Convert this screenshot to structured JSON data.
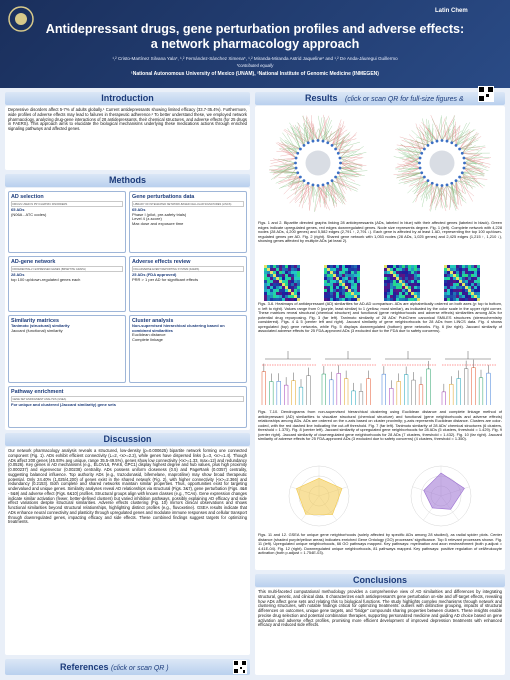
{
  "header": {
    "title_line1": "Antidepressant drugs, gene perturbation profiles and adverse effects:",
    "title_line2": "a network pharmacology approach",
    "authors": "¹,² Cristo-Martínez Silvana Yala*, ¹,² Fernández-Sánchez Ximena*, ¹,² Miranda-Miranda Astrid Jaqueline* and ¹,² De Anda-Jáuregui Guillermo",
    "equal": "*contributed equally",
    "affiliation": "¹National Autonomous University of Mexico (UNAM), ²National Institute of Genomic Medicine (INMEGEN)",
    "logo": "Latin Chem"
  },
  "introduction": {
    "heading": "Introduction",
    "text": "Depressive disorders affect 5-7% of adults globally.¹ Current antidepressants showing limited efficacy (33.7-35.4%). Furthermore, wide profiles of adverse effects may lead to failures in therapeutic adherence.² To better understand these, we employed network pharmacology, analyzing drug-gene interactions of 28 antidepressants, their chemical structures, and adverse effects (for 25 drugs in FAERS). This approach aims to elucidate the biological mechanisms underlying these medications actions through enriched signaling pathways and affected genes."
  },
  "methods": {
    "heading": "Methods",
    "boxes": [
      {
        "title": "AD selection",
        "subtitle": "DRUGS USED IN PSYCHIATRIC DISORDERS",
        "lines": [
          "65 ADs",
          "(N06A - ATC codes)"
        ]
      },
      {
        "title": "Gene perturbations data",
        "subtitle": "LIBRARY OF INTEGRATED NETWORK-BASED CELLULAR SIGNATURES (LINCS)",
        "lines": [
          "65 ADs",
          "Phase I (pilot, pre-safety trials)",
          "Level 4 (z-score)",
          "Max dose and exposure time"
        ]
      },
      {
        "title": "AD-gene network",
        "subtitle": "DIFFERENTIALLY EXPRESSED GENES (BIPARTITE GRAPH)",
        "lines": [
          "28 ADs",
          "top 100 up/down-regulated genes each"
        ]
      },
      {
        "title": "Adverse effects review",
        "subtitle": "FDA ADVERSE EVENT REPORTING SYSTEM (FAERS)",
        "lines": [
          "25 ADs (FDA approved)",
          "PRR > 1 per AD for significant effects"
        ]
      },
      {
        "title": "Similarity matrices",
        "subtitle": "",
        "lines": [
          "Tanimoto (structural) similarity",
          "Jaccard (functional) similarity"
        ]
      },
      {
        "title": "Cluster analysis",
        "subtitle": "",
        "lines": [
          "Non-supervised hierarchical clustering based on combined similarities",
          "Euclidean distance",
          "Complete linkage"
        ]
      },
      {
        "title": "Pathway enrichment",
        "subtitle": "GENE SET ENRICHMENT ANALYSIS (GSEA)",
        "lines": [
          "For unique and clustered (Jaccard similarity) gene sets"
        ]
      }
    ]
  },
  "discussion": {
    "heading": "Discussion",
    "text": "Our network pharmacology analysis reveals a structured, low-density (p=0.000625) bipartite network forming one connected component (Fig. 1). ADs exhibit efficient connectivity (L=2, <κ>=2.2), while genes have dispersed links (L=3, <κ>=1.4). Though ADs affect 200 genes (45.93% avg unique, range 35.5-49.5%), genes show low connectivity (<κ>=1.33, max=12) and redundancy (0.0526). Key genes in AD mechanisms (e.g., ELOVL6, PAK6, GPC1) display highest degree and hub values, plus high proximity (0.000237) and eigenvector (0.00238) centrality. ADs possess uniform closeness (0.5) and PageRank (0.0357) centrality, suggesting balanced influence. Top authority ADs (e.g., trazodonasid, bifemelane, maprotiline) may show broad therapeutic potential. Only 24.40% (1,025/4,200) of genes exist in the shared network (Fig. 2), with higher connectivity (<κ>=2.366) and redundancy (0.2153). Both complete and shared networks maintain similar properties. Thus, opportunities exist for targeting undervalued and unique genes. Similarity analyses reveal AD relationships via structural (Figs. 3&7), gene perturbation (Figs. 4&8 - 5&9) and adverse effect (Figs. 6&10) profiles. Structural groups align with known classes (e.g., TCAs). Gene expression changes indicate similar activation (fewer, better-defined clusters) but varied inhibition pathways, possibly explaining AD efficacy and side effect variations despite structural similarities. Adverse effects clustering (Fig. 10) mirrors clinical observations and shows functional similarities beyond structural relationships, highlighting distinct profiles (e.g., fluvoxetine). GSEA results indicate that ADs enhance neural connectivity and plasticity through upregulated genes and modulate immune responses and cellular transport through downregulated genes, impacting efficacy and side effects. These combined findings suggest targets for optimizing treatments."
  },
  "references": {
    "heading": "References",
    "note": "(click or scan QR )"
  },
  "results": {
    "heading": "Results",
    "note": "(click or scan QR for full-size figures & supplements)",
    "captions": [
      "Figs. 1 and 2. Bipartite directed graphs linking 28 antidepressants (ADs, labeled in blue) with their affected genes (labeled in black). Green edges indicate upregulated genes, red edges downregulated genes. Node size represents degree. Fig. 1 (left). Complete network with 4,228 nodes (28 ADs, 4,200 genes) and 5,582 edges (2,791 ↑, 2,791 ↓). Each gene is affected by at least 1 AD, representing the top 100 up/down-regulated genes per AD. Fig. 2 (right). Shared gene network with 1,053 nodes (28 ADs, 1,025 genes) and 2,425 edges (1,215 ↑, 1,210 ↓), showing genes affected by multiple ADs (at least 2).",
      "Figs. 3-6. Heatmaps of antidepressant (AD) similarities for AD-AD comparison. ADs are alphabetically ordered on both axes (y: top to bottom, x: left to right). Values range from 0 (purple, least similar) to 1 (yellow, most similar), as indicated by the color scale in the upper right corner. These matrices reveal structural (chemical structure) and functional (gene neighborhoods and adverse effects) similarities among ADs for potential drug repurposing. Fig. 3 (far left). Tanimoto similarity of 28 ADs' PubChem canonical SMILES structures (stereochemistry considered). Figs. 4 & 5 (center left and right). Jaccard similarity of gene neighborhoods for 28 ADs from LINCS data. Fig. 4 shows upregulated (top) gene networks, while Fig. 5 displays downregulated (bottom) gene networks. Fig. 6 (far right). Jaccard similarity of associated adverse effects for 25 FDA-approved ADs (3 excluded due to the FDA due to safety concerns).",
      "Figs. 7-10. Dendrograms from non-supervised hierarchical clustering using Euclidean distance and complete linkage method of antidepressant (AD) similarities to visualize structural (chemical structure) and functional (gene neighborhoods and adverse effects) relationships among ADs. ADs are ordered on the x-axis based on cluster proximity; y-axis represents Euclidean distance. Clusters are color-coded, with the red dashed line indicating the cut-off threshold. Fig. 7 (far left). Tanimoto similarity of 28 ADs' chemical structures (6 clusters, threshold = 1.375). Fig. 8 (center left). Jaccard similarity of upregulated gene neighborhoods for 28 ADs (5 clusters, threshold = 1.429). Fig. 9 (center right). Jaccard similarity of downregulated gene neighborhoods for 28 ADs (7 clusters, threshold = 1.432). Fig. 10 (far right). Jaccard similarity of adverse effects for 25 FDA-approved ADs (3 excluded due to safety concerns) (4 clusters, threshold = 1.350).",
      "Figs. 11 and 12. GSEA for unique gene neighborhoods (solely affected by specific ADs among 28 studied), as radial spider plots. Center distance (shaded purple/yellow areas) indicates enriched Gene Ontology (GO) processes' significance. Top 5 relevant processes shown. Fig. 11 (left). Upregulated unique neighborhoods, 66 GO pathways mapped. Key pathways: myelination and axon ensheathment (both p.adjust = 4.41E-04). Fig. 12 (right). Downregulated unique neighborhoods, 81 pathways mapped. Key pathways: positive regulation of cell/leukocyte activation (both p.adjust = 1.754E-03)."
    ]
  },
  "conclusions": {
    "heading": "Conclusions",
    "text": "This multi-faceted computational methodology provides a comprehensive view of AD similarities and differences by integrating structural, genetic, and clinical data. It characterizes each antidepressant's gene perturbation on-site and off-target effects, revealing how ADs affect gene sets and relating this to biological functions. The study highlights complex mechanisms through network and clustering structures, with notable findings critical for optimizing treatments: outliers with distinctive grouping, impacts of structural differences on outcomes, unique gene targets, and \"bridge\" compounds sharing properties between clusters. These insights enable precise drug selection and potential combination therapies, supporting personalized medicine and guiding AD choice based on gene activation and adverse effect profiles, promising more efficient development of improved depression treatments with enhanced efficacy and reduced side effects."
  }
}
